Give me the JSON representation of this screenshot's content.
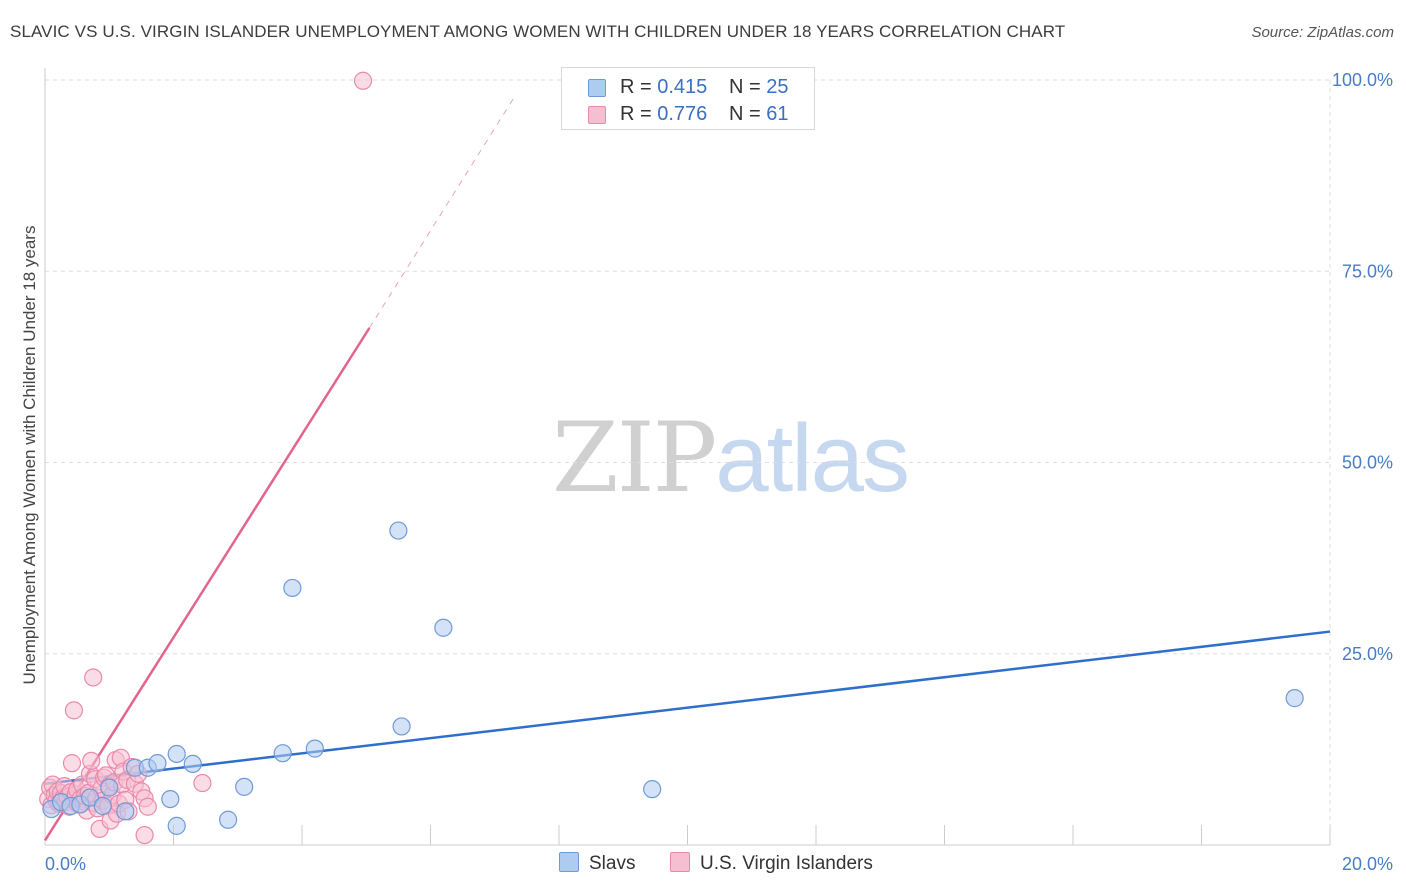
{
  "title": "SLAVIC VS U.S. VIRGIN ISLANDER UNEMPLOYMENT AMONG WOMEN WITH CHILDREN UNDER 18 YEARS CORRELATION CHART",
  "source": "Source: ZipAtlas.com",
  "watermark": {
    "zip": "ZIP",
    "atlas": "atlas"
  },
  "legend_top": {
    "rows": [
      {
        "r_label": "R =",
        "r_value": "0.415",
        "n_label": "N =",
        "n_value": "25"
      },
      {
        "r_label": "R =",
        "r_value": "0.776",
        "n_label": "N =",
        "n_value": "61"
      }
    ]
  },
  "legend_bottom": [
    "Slavs",
    "U.S. Virgin Islanders"
  ],
  "colors": {
    "slavs_fill": "#aecbf0",
    "slavs_stroke": "#6f9ad6",
    "slavs_line": "#2f6fcc",
    "vi_fill": "#f6bfd1",
    "vi_stroke": "#ea8aaa",
    "vi_line": "#e2648f",
    "grid": "#dddddd",
    "tick_text": "#4a7cc4"
  },
  "chart_data": {
    "type": "scatter",
    "title": "SLAVIC VS U.S. VIRGIN ISLANDER UNEMPLOYMENT AMONG WOMEN WITH CHILDREN UNDER 18 YEARS CORRELATION CHART",
    "xlabel": "",
    "ylabel": "Unemployment Among Women with Children Under 18 years",
    "xlim": [
      0,
      20
    ],
    "ylim": [
      0,
      100
    ],
    "x_ticks": [
      "0.0%",
      "20.0%"
    ],
    "y_ticks": [
      {
        "value": 25,
        "label": "25.0%"
      },
      {
        "value": 50,
        "label": "50.0%"
      },
      {
        "value": 75,
        "label": "75.0%"
      },
      {
        "value": 100,
        "label": "100.0%"
      }
    ],
    "grid": true,
    "legend": "top-center",
    "series": [
      {
        "name": "Slavs",
        "R": 0.415,
        "N": 25,
        "trend": {
          "x": [
            0,
            20
          ],
          "y": [
            8.0,
            27.9
          ]
        },
        "points": [
          {
            "x": 0.1,
            "y": 4.7
          },
          {
            "x": 0.25,
            "y": 5.6
          },
          {
            "x": 0.4,
            "y": 5.1
          },
          {
            "x": 0.55,
            "y": 5.3
          },
          {
            "x": 0.7,
            "y": 6.2
          },
          {
            "x": 0.9,
            "y": 5.1
          },
          {
            "x": 1.0,
            "y": 7.5
          },
          {
            "x": 1.25,
            "y": 4.4
          },
          {
            "x": 1.4,
            "y": 10.1
          },
          {
            "x": 1.6,
            "y": 10.1
          },
          {
            "x": 1.75,
            "y": 10.7
          },
          {
            "x": 1.95,
            "y": 6.0
          },
          {
            "x": 2.05,
            "y": 2.5
          },
          {
            "x": 2.05,
            "y": 11.9
          },
          {
            "x": 2.3,
            "y": 10.6
          },
          {
            "x": 2.85,
            "y": 3.3
          },
          {
            "x": 3.1,
            "y": 7.6
          },
          {
            "x": 3.7,
            "y": 12.0
          },
          {
            "x": 3.85,
            "y": 33.6
          },
          {
            "x": 4.2,
            "y": 12.6
          },
          {
            "x": 5.5,
            "y": 41.1
          },
          {
            "x": 5.55,
            "y": 15.5
          },
          {
            "x": 6.2,
            "y": 28.4
          },
          {
            "x": 9.45,
            "y": 7.3
          },
          {
            "x": 19.45,
            "y": 19.2
          }
        ]
      },
      {
        "name": "U.S. Virgin Islanders",
        "R": 0.776,
        "N": 61,
        "trend": {
          "x": [
            0,
            5.05
          ],
          "y": [
            0.6,
            67.6
          ]
        },
        "trend_dashed": {
          "x": [
            5.05,
            7.3
          ],
          "y": [
            67.6,
            97.7
          ]
        },
        "points": [
          {
            "x": 0.05,
            "y": 6.0
          },
          {
            "x": 0.08,
            "y": 7.5
          },
          {
            "x": 0.1,
            "y": 5.2
          },
          {
            "x": 0.12,
            "y": 7.9
          },
          {
            "x": 0.15,
            "y": 6.5
          },
          {
            "x": 0.18,
            "y": 5.8
          },
          {
            "x": 0.2,
            "y": 7.0
          },
          {
            "x": 0.22,
            "y": 5.4
          },
          {
            "x": 0.25,
            "y": 6.8
          },
          {
            "x": 0.28,
            "y": 6.1
          },
          {
            "x": 0.3,
            "y": 7.7
          },
          {
            "x": 0.32,
            "y": 5.6
          },
          {
            "x": 0.35,
            "y": 6.3
          },
          {
            "x": 0.38,
            "y": 5.0
          },
          {
            "x": 0.4,
            "y": 6.9
          },
          {
            "x": 0.42,
            "y": 10.7
          },
          {
            "x": 0.45,
            "y": 5.9
          },
          {
            "x": 0.48,
            "y": 6.6
          },
          {
            "x": 0.5,
            "y": 7.2
          },
          {
            "x": 0.52,
            "y": 5.3
          },
          {
            "x": 0.55,
            "y": 6.0
          },
          {
            "x": 0.58,
            "y": 7.9
          },
          {
            "x": 0.6,
            "y": 5.7
          },
          {
            "x": 0.62,
            "y": 6.4
          },
          {
            "x": 0.65,
            "y": 4.5
          },
          {
            "x": 0.68,
            "y": 6.8
          },
          {
            "x": 0.7,
            "y": 9.3
          },
          {
            "x": 0.72,
            "y": 11.0
          },
          {
            "x": 0.75,
            "y": 5.5
          },
          {
            "x": 0.78,
            "y": 8.6
          },
          {
            "x": 0.8,
            "y": 6.2
          },
          {
            "x": 0.82,
            "y": 4.8
          },
          {
            "x": 0.85,
            "y": 2.1
          },
          {
            "x": 0.88,
            "y": 7.4
          },
          {
            "x": 0.9,
            "y": 5.8
          },
          {
            "x": 0.92,
            "y": 8.8
          },
          {
            "x": 0.95,
            "y": 9.1
          },
          {
            "x": 0.98,
            "y": 5.1
          },
          {
            "x": 1.0,
            "y": 7.7
          },
          {
            "x": 1.02,
            "y": 3.2
          },
          {
            "x": 1.05,
            "y": 6.5
          },
          {
            "x": 1.08,
            "y": 8.2
          },
          {
            "x": 1.1,
            "y": 11.1
          },
          {
            "x": 1.12,
            "y": 4.1
          },
          {
            "x": 1.15,
            "y": 5.4
          },
          {
            "x": 1.18,
            "y": 11.4
          },
          {
            "x": 1.2,
            "y": 7.9
          },
          {
            "x": 1.22,
            "y": 9.6
          },
          {
            "x": 1.25,
            "y": 5.9
          },
          {
            "x": 1.28,
            "y": 8.5
          },
          {
            "x": 1.3,
            "y": 4.4
          },
          {
            "x": 1.35,
            "y": 10.2
          },
          {
            "x": 1.4,
            "y": 8.0
          },
          {
            "x": 1.45,
            "y": 9.3
          },
          {
            "x": 1.5,
            "y": 7.0
          },
          {
            "x": 1.55,
            "y": 6.1
          },
          {
            "x": 1.6,
            "y": 5.0
          },
          {
            "x": 0.45,
            "y": 17.6
          },
          {
            "x": 0.75,
            "y": 21.9
          },
          {
            "x": 1.55,
            "y": 1.3
          },
          {
            "x": 2.45,
            "y": 8.1
          },
          {
            "x": 4.95,
            "y": 99.9
          }
        ]
      }
    ]
  }
}
